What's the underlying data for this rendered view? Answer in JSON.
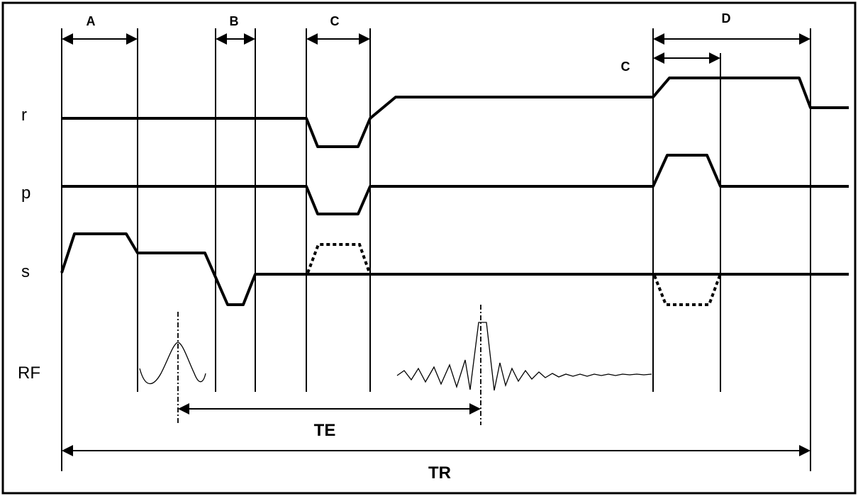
{
  "labels": {
    "row_r": "r",
    "row_p": "p",
    "row_s": "s",
    "row_rf": "RF",
    "interval_a": "A",
    "interval_b": "B",
    "interval_c_first": "C",
    "interval_c_second": "C",
    "interval_d": "D",
    "te": "TE",
    "tr": "TR"
  }
}
